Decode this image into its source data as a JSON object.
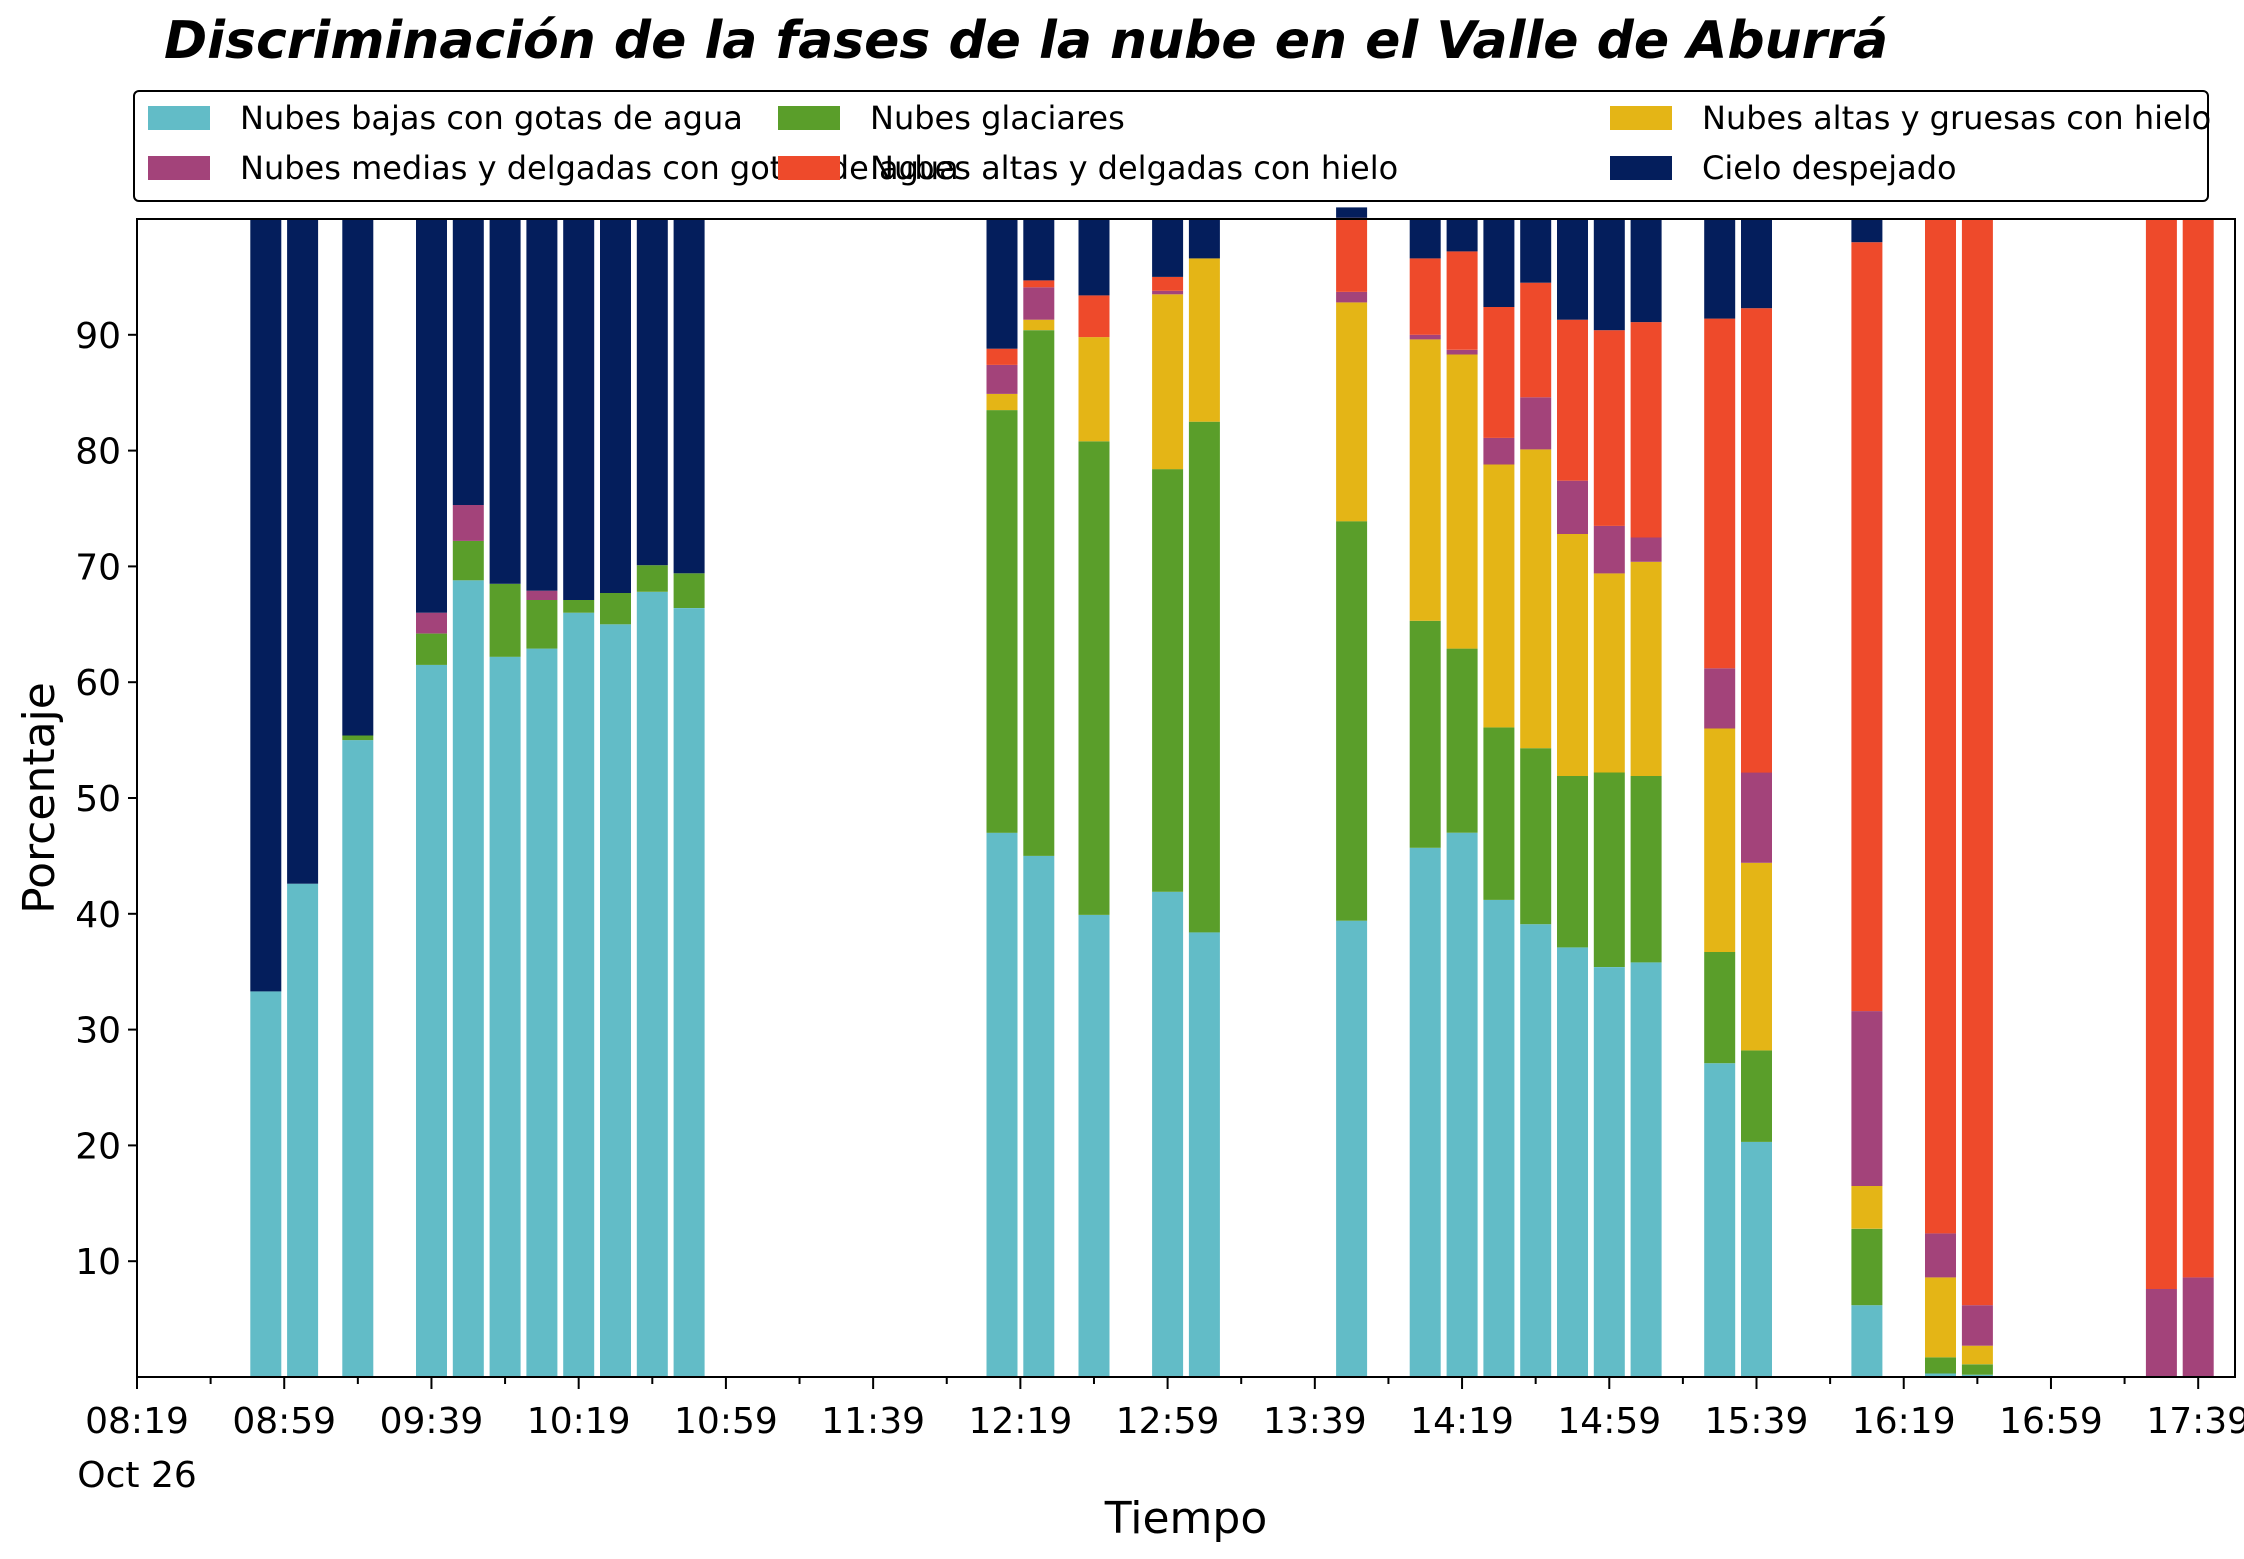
{
  "chart_data": {
    "type": "bar",
    "stacked": true,
    "title": "Discriminación de la fases de la nube en el Valle de Aburrá",
    "xlabel": "Tiempo",
    "ylabel": "Porcentaje",
    "ylim": [
      0,
      100
    ],
    "yticks": [
      10,
      20,
      30,
      40,
      50,
      60,
      70,
      80,
      90
    ],
    "xlim_minutes": [
      0,
      570
    ],
    "x_start_time": "08:19",
    "x_start_date": "Oct 26",
    "xticks": [
      "08:19",
      "08:59",
      "09:39",
      "10:19",
      "10:59",
      "11:39",
      "12:19",
      "12:59",
      "13:39",
      "14:19",
      "14:59",
      "15:39",
      "16:19",
      "16:59",
      "17:39"
    ],
    "legend": {
      "placement": "top",
      "columns": 3
    },
    "series": [
      {
        "name": "Nubes bajas con gotas de agua",
        "color": "#62BCC7"
      },
      {
        "name": "Nubes glaciares",
        "color": "#5A9E2A"
      },
      {
        "name": "Nubes altas y gruesas con hielo",
        "color": "#E4B516"
      },
      {
        "name": "Nubes medias y delgadas con gotas de agua",
        "color": "#A3437A"
      },
      {
        "name": "Nubes altas y delgadas con hielo",
        "color": "#EE4A2B"
      },
      {
        "name": "Cielo despejado",
        "color": "#041E5C"
      }
    ],
    "bars": [
      {
        "time": "08:54",
        "values": [
          33.3,
          0,
          0,
          0,
          0,
          66.7
        ]
      },
      {
        "time": "09:04",
        "values": [
          42.6,
          0,
          0,
          0,
          0,
          57.4
        ]
      },
      {
        "time": "09:19",
        "values": [
          55.0,
          0.4,
          0,
          0,
          0,
          44.6
        ]
      },
      {
        "time": "09:39",
        "values": [
          61.5,
          2.7,
          0,
          1.8,
          0,
          34.0
        ]
      },
      {
        "time": "09:49",
        "values": [
          68.8,
          3.4,
          0,
          3.1,
          0,
          24.7
        ]
      },
      {
        "time": "09:59",
        "values": [
          62.2,
          6.3,
          0,
          0,
          0,
          31.5
        ]
      },
      {
        "time": "10:09",
        "values": [
          62.9,
          4.2,
          0,
          0.8,
          0,
          32.1
        ]
      },
      {
        "time": "10:19",
        "values": [
          66.0,
          1.1,
          0,
          0,
          0,
          32.9
        ]
      },
      {
        "time": "10:29",
        "values": [
          65.0,
          2.7,
          0,
          0,
          0,
          32.3
        ]
      },
      {
        "time": "10:39",
        "values": [
          67.8,
          2.3,
          0,
          0,
          0,
          29.9
        ]
      },
      {
        "time": "10:49",
        "values": [
          66.4,
          3.0,
          0,
          0,
          0,
          30.6
        ]
      },
      {
        "time": "12:14",
        "values": [
          47.0,
          36.5,
          1.4,
          2.5,
          1.4,
          11.2
        ]
      },
      {
        "time": "12:24",
        "values": [
          45.0,
          45.4,
          0.9,
          2.8,
          0.6,
          5.3
        ]
      },
      {
        "time": "12:39",
        "values": [
          39.9,
          40.9,
          9.0,
          0,
          3.6,
          6.6
        ]
      },
      {
        "time": "12:59",
        "values": [
          41.9,
          36.5,
          15.1,
          0.3,
          1.2,
          5.0
        ]
      },
      {
        "time": "13:09",
        "values": [
          38.4,
          44.1,
          14.1,
          0,
          0,
          3.4
        ]
      },
      {
        "time": "13:49",
        "values": [
          39.4,
          34.5,
          18.9,
          0.9,
          6.4,
          0.9
        ]
      },
      {
        "time": "14:09",
        "values": [
          45.7,
          19.6,
          24.3,
          0.4,
          6.6,
          3.4
        ]
      },
      {
        "time": "14:19",
        "values": [
          47.0,
          15.9,
          25.4,
          0.4,
          8.5,
          2.8
        ]
      },
      {
        "time": "14:29",
        "values": [
          41.2,
          14.9,
          22.7,
          2.3,
          11.3,
          7.6
        ]
      },
      {
        "time": "14:39",
        "values": [
          39.1,
          15.2,
          25.8,
          4.5,
          9.9,
          5.5
        ]
      },
      {
        "time": "14:49",
        "values": [
          37.1,
          14.8,
          20.9,
          4.6,
          13.9,
          8.7
        ]
      },
      {
        "time": "14:59",
        "values": [
          35.4,
          16.8,
          17.2,
          4.1,
          16.9,
          9.6
        ]
      },
      {
        "time": "15:09",
        "values": [
          35.8,
          16.1,
          18.5,
          2.1,
          18.6,
          8.9
        ]
      },
      {
        "time": "15:29",
        "values": [
          27.1,
          9.6,
          19.3,
          5.2,
          30.2,
          8.6
        ]
      },
      {
        "time": "15:39",
        "values": [
          20.3,
          7.9,
          16.2,
          7.8,
          40.1,
          7.7
        ]
      },
      {
        "time": "16:09",
        "values": [
          6.2,
          6.6,
          3.7,
          15.1,
          66.4,
          2.0
        ]
      },
      {
        "time": "16:29",
        "values": [
          0.3,
          1.4,
          6.9,
          3.8,
          87.6,
          0
        ]
      },
      {
        "time": "16:39",
        "values": [
          0.2,
          0.9,
          1.6,
          3.5,
          93.8,
          0
        ]
      },
      {
        "time": "17:29",
        "values": [
          0,
          0,
          0,
          7.6,
          92.4,
          0
        ]
      },
      {
        "time": "17:39",
        "values": [
          0,
          0,
          0,
          8.6,
          91.4,
          0
        ]
      }
    ]
  }
}
